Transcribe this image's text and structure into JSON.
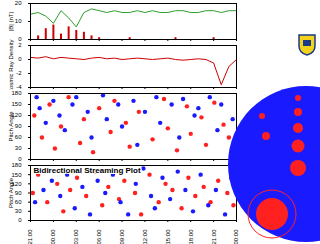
{
  "chart_data": [
    {
      "type": "line",
      "ylabel": "|B| (nT)",
      "xlim": [
        0,
        27
      ],
      "xticks": [
        {
          "value": 0,
          "label": "21:00"
        },
        {
          "value": 3,
          "label": "00:00"
        },
        {
          "value": 6,
          "label": "03:00"
        },
        {
          "value": 9,
          "label": "06:00"
        },
        {
          "value": 12,
          "label": "09:00"
        },
        {
          "value": 15,
          "label": "12:00"
        },
        {
          "value": 18,
          "label": "15:00"
        },
        {
          "value": 21,
          "label": "18:00"
        },
        {
          "value": 24,
          "label": "21:00"
        },
        {
          "value": 27,
          "label": "00:00"
        }
      ],
      "ylim": [
        0,
        20
      ],
      "yticks": [
        0,
        10,
        20
      ],
      "grid": false,
      "tick_labels": "y",
      "x": [
        0,
        1,
        2,
        3,
        4,
        5,
        6,
        7,
        8,
        9,
        10,
        11,
        12,
        13,
        14,
        15,
        16,
        17,
        18,
        19,
        20,
        21,
        22,
        23,
        24,
        25,
        26,
        27
      ],
      "series": [
        {
          "type": "bar",
          "color": "#cc0000",
          "values": [
            0,
            2,
            6,
            8,
            3,
            7,
            5,
            4,
            2,
            1,
            0,
            0,
            0,
            1,
            0,
            0,
            0,
            0,
            0,
            1,
            0,
            0,
            0,
            0,
            1,
            0,
            0,
            0
          ]
        },
        {
          "type": "line",
          "color": "#2e9e2e",
          "values": [
            14,
            15,
            13,
            9,
            16,
            12,
            7,
            15,
            17,
            16,
            15,
            16,
            15,
            15,
            16,
            15,
            16,
            15,
            15,
            16,
            16,
            15,
            15,
            16,
            16,
            15,
            16,
            16
          ]
        }
      ]
    },
    {
      "type": "line",
      "ylabel": "Cosmic Ray Density",
      "xlim": [
        0,
        27
      ],
      "xticks": [
        {
          "value": 0,
          "label": "21:00"
        },
        {
          "value": 3,
          "label": "00:00"
        },
        {
          "value": 6,
          "label": "03:00"
        },
        {
          "value": 9,
          "label": "06:00"
        },
        {
          "value": 12,
          "label": "09:00"
        },
        {
          "value": 15,
          "label": "12:00"
        },
        {
          "value": 18,
          "label": "15:00"
        },
        {
          "value": 21,
          "label": "18:00"
        },
        {
          "value": 24,
          "label": "21:00"
        },
        {
          "value": 27,
          "label": "00:00"
        }
      ],
      "ylim": [
        -4,
        2
      ],
      "yticks": [
        -4,
        -2,
        0,
        2
      ],
      "grid": false,
      "tick_labels": "y",
      "x": [
        0,
        1,
        2,
        3,
        4,
        5,
        6,
        7,
        8,
        9,
        10,
        11,
        12,
        13,
        14,
        15,
        16,
        17,
        18,
        19,
        20,
        21,
        22,
        23,
        24,
        25,
        26,
        27
      ],
      "series": [
        {
          "color": "#cc0000",
          "values": [
            0.3,
            0.2,
            0.4,
            0.1,
            0.3,
            0.2,
            0.1,
            0.0,
            0.2,
            0.3,
            0.1,
            0.2,
            0.0,
            0.1,
            0.2,
            0.1,
            0.0,
            0.1,
            0.2,
            0.0,
            -0.1,
            0.0,
            0.1,
            0.0,
            -0.5,
            -3.6,
            -1.0,
            0.0
          ]
        }
      ]
    },
    {
      "type": "scatter",
      "ylabel": "Pitch Angle",
      "xlim": [
        0,
        27
      ],
      "xticks": [
        {
          "value": 0,
          "label": "21:00"
        },
        {
          "value": 3,
          "label": "00:00"
        },
        {
          "value": 6,
          "label": "03:00"
        },
        {
          "value": 9,
          "label": "06:00"
        },
        {
          "value": 12,
          "label": "09:00"
        },
        {
          "value": 15,
          "label": "12:00"
        },
        {
          "value": 18,
          "label": "15:00"
        },
        {
          "value": 21,
          "label": "18:00"
        },
        {
          "value": 24,
          "label": "21:00"
        },
        {
          "value": 27,
          "label": "00:00"
        }
      ],
      "ylim": [
        0,
        180
      ],
      "yticks": [
        0,
        30,
        60,
        90,
        120,
        150,
        180
      ],
      "grid": false,
      "tick_labels": "y",
      "series": [
        {
          "color": "#ff2020",
          "x": [
            0.5,
            1.5,
            2.5,
            3.2,
            4,
            5,
            6.5,
            7,
            8.2,
            9,
            10.5,
            11,
            12.5,
            13,
            14.2,
            16,
            17.5,
            18,
            19.2,
            20.5,
            21,
            22.4,
            23,
            24.1,
            25.3,
            26
          ],
          "values": [
            120,
            60,
            150,
            30,
            90,
            170,
            45,
            110,
            20,
            140,
            75,
            160,
            100,
            35,
            130,
            55,
            165,
            85,
            25,
            145,
            70,
            115,
            40,
            155,
            95,
            60
          ]
        },
        {
          "color": "#1a1aff",
          "x": [
            0.8,
            1.2,
            2,
            3,
            3.8,
            4.5,
            5.5,
            6,
            7.5,
            8,
            9.5,
            10,
            11.5,
            12,
            13.5,
            14,
            15,
            16.5,
            17,
            18.5,
            19.5,
            20,
            21.5,
            22,
            23.5,
            24.5,
            25,
            26.5
          ],
          "values": [
            170,
            140,
            100,
            160,
            120,
            80,
            150,
            170,
            130,
            60,
            175,
            110,
            150,
            90,
            160,
            40,
            130,
            170,
            100,
            150,
            60,
            165,
            120,
            140,
            170,
            80,
            150,
            110
          ]
        }
      ]
    },
    {
      "type": "scatter",
      "title": "Bidirectional Streaming Plot",
      "ylabel": "Pitch Angle",
      "xlim": [
        0,
        27
      ],
      "xticks": [
        {
          "value": 0,
          "label": "21:00"
        },
        {
          "value": 3,
          "label": "00:00"
        },
        {
          "value": 6,
          "label": "03:00"
        },
        {
          "value": 9,
          "label": "06:00"
        },
        {
          "value": 12,
          "label": "09:00"
        },
        {
          "value": 15,
          "label": "12:00"
        },
        {
          "value": 18,
          "label": "15:00"
        },
        {
          "value": 21,
          "label": "18:00"
        },
        {
          "value": 24,
          "label": "21:00"
        },
        {
          "value": 27,
          "label": "00:00"
        }
      ],
      "ylim": [
        0,
        180
      ],
      "yticks": [
        0,
        30,
        60,
        90,
        120,
        150,
        180
      ],
      "grid": false,
      "series": [
        {
          "color": "#ff2020",
          "x": [
            0.3,
            1,
            2.2,
            3.5,
            4.3,
            5.2,
            6.1,
            7.3,
            8.5,
            9.4,
            10.2,
            11.6,
            12.3,
            13.7,
            14.5,
            15.6,
            16.8,
            17.7,
            18.6,
            19.8,
            20.7,
            21.6,
            22.7,
            23.6,
            24.6,
            25.8,
            26.6
          ],
          "values": [
            90,
            150,
            60,
            120,
            30,
            100,
            140,
            80,
            160,
            50,
            110,
            70,
            130,
            90,
            20,
            150,
            60,
            120,
            100,
            40,
            140,
            80,
            110,
            60,
            130,
            90,
            50
          ]
        },
        {
          "color": "#1a1aff",
          "x": [
            0.6,
            1.7,
            2.8,
            3.9,
            4.8,
            5.8,
            6.8,
            7.8,
            8.8,
            9.8,
            10.8,
            11.8,
            12.8,
            13.8,
            14.8,
            15.8,
            16.3,
            17.3,
            18.3,
            19.3,
            20.3,
            21.3,
            22.3,
            23.3,
            24.3,
            25.5,
            26.3
          ],
          "values": [
            60,
            100,
            130,
            80,
            150,
            40,
            110,
            20,
            130,
            90,
            150,
            60,
            20,
            120,
            170,
            80,
            40,
            140,
            70,
            160,
            100,
            30,
            150,
            50,
            100,
            20,
            140
          ]
        }
      ]
    }
  ]
}
